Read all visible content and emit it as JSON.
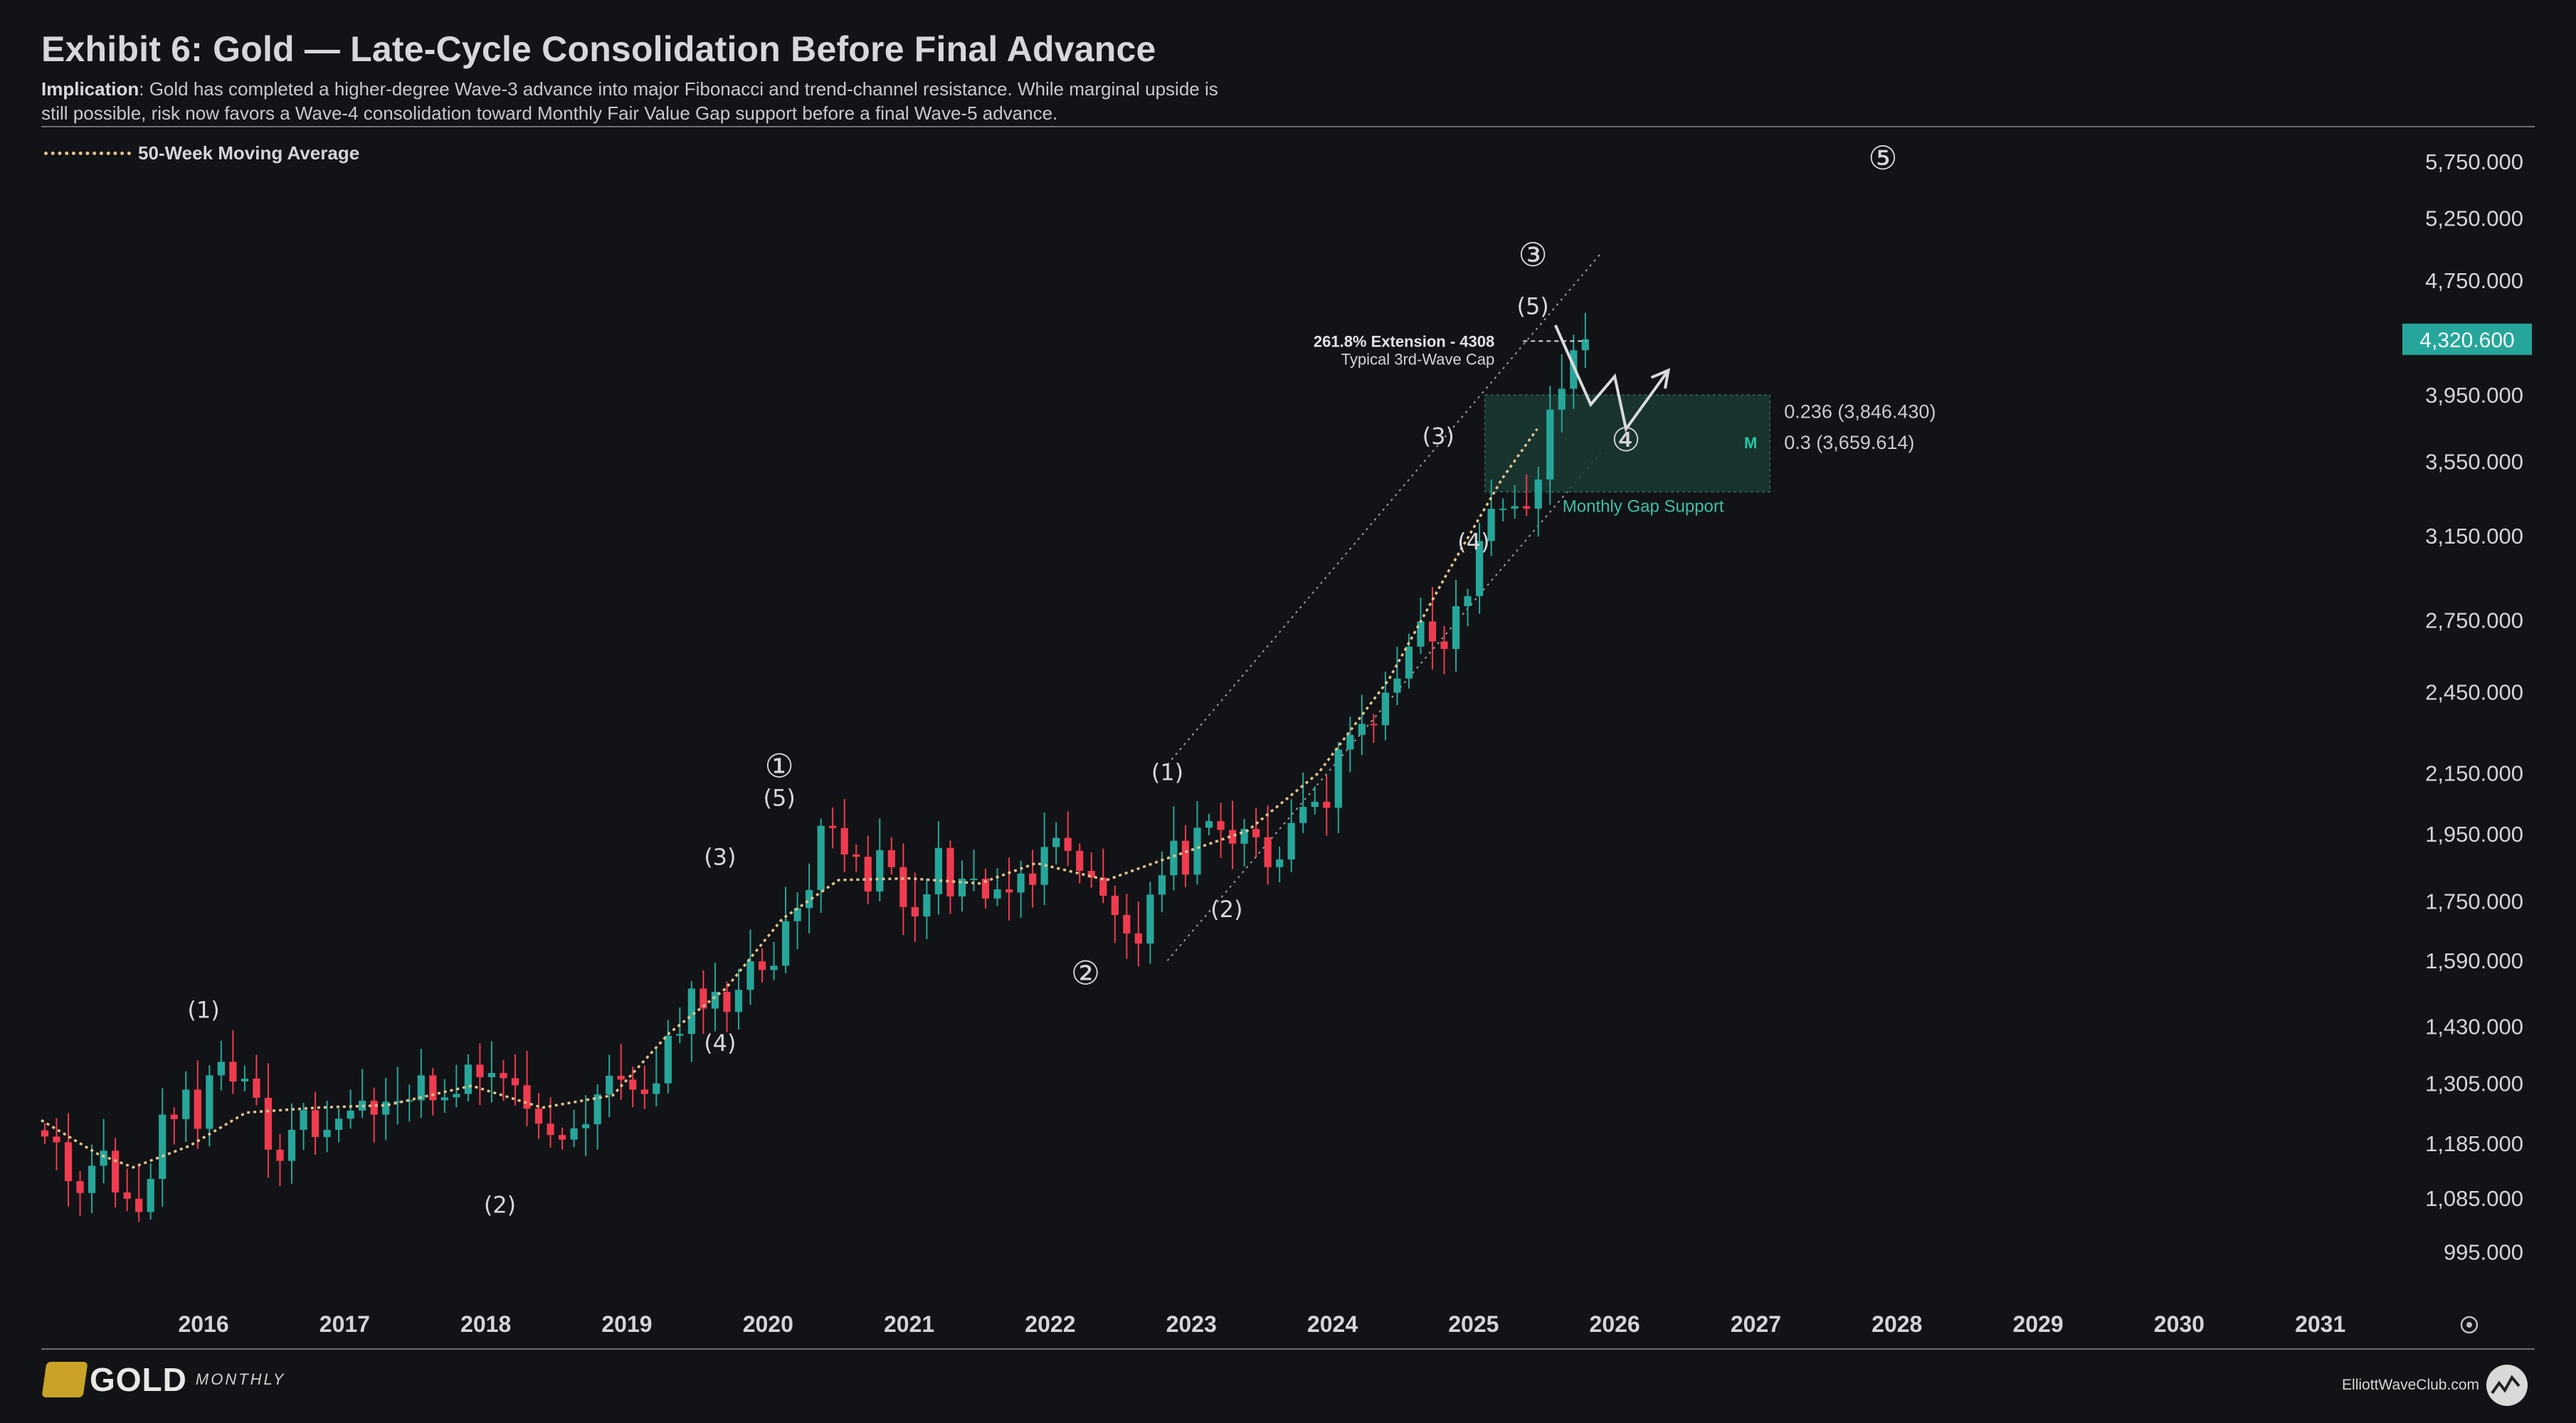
{
  "header": {
    "title": "Exhibit 6: Gold — Late-Cycle Consolidation Before Final Advance",
    "implication_label": "Implication",
    "implication_text": ": Gold has completed a higher-degree Wave-3 advance into major Fibonacci and trend-channel resistance. While marginal upside is still possible, risk now favors a Wave-4 consolidation toward Monthly Fair Value Gap support before a final Wave-5 advance."
  },
  "legend": {
    "label": "50-Week Moving Average"
  },
  "colors": {
    "up": "#26a69a",
    "down": "#ef3b4f",
    "ma": "#e3c48a",
    "price_tag_bg": "#26a69a",
    "gap_fill": "#1b3a33"
  },
  "footer": {
    "logo": "GOLD",
    "logo_sub": "MONTHLY",
    "site": "ElliottWaveClub.com"
  },
  "chart_data": {
    "type": "candlestick",
    "timeframe": "monthly",
    "scale": "log",
    "ylim": [
      950,
      6000
    ],
    "y_ticks": [
      "995.000",
      "1,085.000",
      "1,185.000",
      "1,305.000",
      "1,430.000",
      "1,590.000",
      "1,750.000",
      "1,950.000",
      "2,150.000",
      "2,450.000",
      "2,750.000",
      "3,150.000",
      "3,550.000",
      "3,950.000",
      "4,750.000",
      "5,250.000",
      "5,750.000"
    ],
    "y_tick_values": [
      995,
      1085,
      1185,
      1305,
      1430,
      1590,
      1750,
      1950,
      2150,
      2450,
      2750,
      3150,
      3550,
      3950,
      4750,
      5250,
      5750
    ],
    "x_ticks": [
      "2016",
      "2017",
      "2018",
      "2019",
      "2020",
      "2021",
      "2022",
      "2023",
      "2024",
      "2025",
      "2026",
      "2027",
      "2028",
      "2029",
      "2030",
      "2031"
    ],
    "x_range": [
      2015.35,
      2031.9
    ],
    "last_price": "4,320.600",
    "last_price_value": 4320.6,
    "closes": [
      1198,
      1187,
      1115,
      1094,
      1143,
      1171,
      1095,
      1084,
      1061,
      1119,
      1241,
      1232,
      1292,
      1213,
      1322,
      1351,
      1309,
      1315,
      1275,
      1173,
      1152,
      1211,
      1250,
      1197,
      1211,
      1233,
      1249,
      1269,
      1241,
      1267,
      1268,
      1270,
      1322,
      1270,
      1276,
      1283,
      1345,
      1318,
      1327,
      1316,
      1301,
      1253,
      1223,
      1201,
      1192,
      1214,
      1222,
      1282,
      1321,
      1313,
      1292,
      1283,
      1305,
      1409,
      1413,
      1520,
      1472,
      1512,
      1464,
      1517,
      1588,
      1566,
      1577,
      1694,
      1730,
      1781,
      1975,
      1968,
      1886,
      1879,
      1777,
      1899,
      1848,
      1733,
      1707,
      1769,
      1906,
      1763,
      1814,
      1814,
      1757,
      1783,
      1774,
      1829,
      1796,
      1909,
      1937,
      1897,
      1837,
      1817,
      1765,
      1711,
      1661,
      1634,
      1768,
      1824,
      1928,
      1826,
      1969,
      1990,
      1962,
      1919,
      1965,
      1939,
      1848,
      1871,
      1984,
      2036,
      2053,
      2033,
      2233,
      2286,
      2327,
      2322,
      2447,
      2503,
      2635,
      2744,
      2657,
      2625,
      2812,
      2858,
      3123,
      3289,
      3290,
      3303,
      3290,
      3448,
      3858,
      3990,
      4245,
      4320.6
    ],
    "moving_average_50w": [
      {
        "t": 2015.35,
        "v": 1230
      },
      {
        "t": 2015.75,
        "v": 1165
      },
      {
        "t": 2016.0,
        "v": 1140
      },
      {
        "t": 2016.4,
        "v": 1180
      },
      {
        "t": 2016.8,
        "v": 1245
      },
      {
        "t": 2017.3,
        "v": 1255
      },
      {
        "t": 2017.8,
        "v": 1260
      },
      {
        "t": 2018.4,
        "v": 1300
      },
      {
        "t": 2018.9,
        "v": 1255
      },
      {
        "t": 2019.4,
        "v": 1280
      },
      {
        "t": 2019.8,
        "v": 1415
      },
      {
        "t": 2020.2,
        "v": 1520
      },
      {
        "t": 2020.6,
        "v": 1700
      },
      {
        "t": 2021.0,
        "v": 1810
      },
      {
        "t": 2021.5,
        "v": 1815
      },
      {
        "t": 2022.0,
        "v": 1800
      },
      {
        "t": 2022.4,
        "v": 1860
      },
      {
        "t": 2022.9,
        "v": 1810
      },
      {
        "t": 2023.3,
        "v": 1870
      },
      {
        "t": 2023.9,
        "v": 1960
      },
      {
        "t": 2024.4,
        "v": 2150
      },
      {
        "t": 2024.9,
        "v": 2500
      },
      {
        "t": 2025.3,
        "v": 2950
      },
      {
        "t": 2025.7,
        "v": 3450
      },
      {
        "t": 2025.95,
        "v": 3740
      }
    ],
    "wave_labels": [
      {
        "text": "(1)",
        "t": 2016.5,
        "v": 1450
      },
      {
        "text": "(2)",
        "t": 2018.6,
        "v": 1060
      },
      {
        "text": "(3)",
        "t": 2020.16,
        "v": 1855
      },
      {
        "text": "(4)",
        "t": 2020.16,
        "v": 1375
      },
      {
        "text": "①",
        "t": 2020.58,
        "v": 2135
      },
      {
        "text": "(5)",
        "t": 2020.58,
        "v": 2040
      },
      {
        "text": "②",
        "t": 2022.75,
        "v": 1530
      },
      {
        "text": "(1)",
        "t": 2023.33,
        "v": 2125
      },
      {
        "text": "(2)",
        "t": 2023.75,
        "v": 1705
      },
      {
        "text": "(3)",
        "t": 2025.25,
        "v": 3650
      },
      {
        "text": "(4)",
        "t": 2025.5,
        "v": 3080
      },
      {
        "text": "③",
        "t": 2025.92,
        "v": 4860
      },
      {
        "text": "(5)",
        "t": 2025.92,
        "v": 4500
      },
      {
        "text": "④",
        "t": 2026.58,
        "v": 3610
      },
      {
        "text": "⑤",
        "t": 2028.4,
        "v": 5680
      }
    ],
    "projection_path": [
      {
        "t": 2026.08,
        "v": 4420
      },
      {
        "t": 2026.33,
        "v": 3890
      },
      {
        "t": 2026.5,
        "v": 4070
      },
      {
        "t": 2026.58,
        "v": 3740
      },
      {
        "t": 2026.88,
        "v": 4110
      }
    ],
    "projection_arrow_from": {
      "t": 2026.7,
      "v": 3905
    },
    "extension": {
      "label_line1": "261.8% Extension - 4308",
      "label_line2": "Typical 3rd-Wave Cap",
      "value": 4308,
      "t_start": 2025.85,
      "t_end": 2026.3
    },
    "gap_zone": {
      "top": 3950,
      "bottom": 3380,
      "t_start": 2025.58,
      "t_end": 2027.6,
      "label": "Monthly Gap Support",
      "marker": "M"
    },
    "fib_levels": [
      {
        "label": "0.236 (3,846.430)",
        "value": 3846.43
      },
      {
        "label": "0.3 (3,659.614)",
        "value": 3659.614
      }
    ],
    "channel_upper": [
      {
        "t": 2023.33,
        "v": 2180
      },
      {
        "t": 2026.4,
        "v": 4960
      }
    ],
    "channel_lower": [
      {
        "t": 2023.33,
        "v": 1590
      },
      {
        "t": 2026.4,
        "v": 3600
      }
    ]
  }
}
